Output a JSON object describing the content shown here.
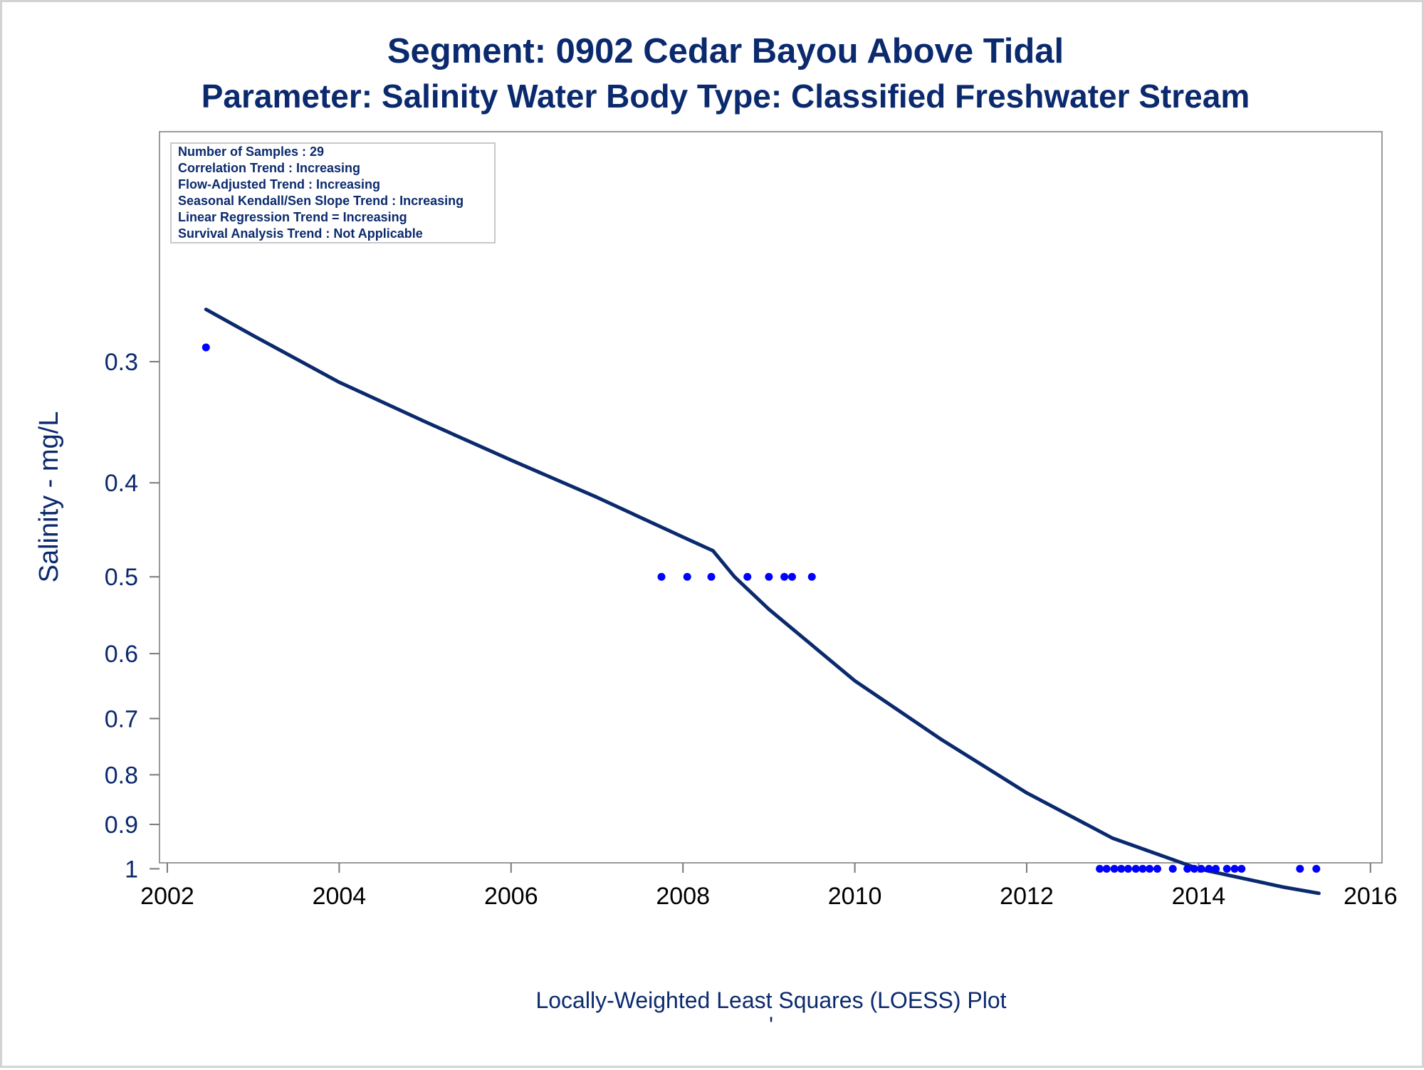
{
  "chart_data": {
    "type": "scatter",
    "title": "Segment: 0902  Cedar Bayou Above Tidal",
    "subtitle": "Parameter: Salinity   Water Body Type: Classified Freshwater Stream",
    "xlabel": "Locally-Weighted Least Squares (LOESS) Plot",
    "ylabel": "Salinity - mg/L",
    "footnote_mark": "'",
    "y_scale": "log",
    "xlim": [
      2002,
      2016
    ],
    "ylim": [
      0.26,
      1.07
    ],
    "x_ticks": [
      2002,
      2004,
      2006,
      2008,
      2010,
      2012,
      2014,
      2016
    ],
    "y_ticks": [
      0.3,
      0.4,
      0.5,
      0.6,
      0.7,
      0.8,
      0.9,
      1
    ],
    "x_tick_labels": [
      "2002",
      "2004",
      "2006",
      "2008",
      "2010",
      "2012",
      "2014",
      "2016"
    ],
    "y_tick_labels": [
      "0.3",
      "0.4",
      "0.5",
      "0.6",
      "0.7",
      "0.8",
      "0.9",
      "1"
    ],
    "grid": false,
    "legend": "none",
    "stats_box": {
      "placement": "top-left",
      "lines": [
        "Number of Samples : 29",
        "Correlation Trend : Increasing",
        "Flow-Adjusted Trend : Increasing",
        "Seasonal Kendall/Sen Slope Trend : Increasing",
        "Linear Regression Trend = Increasing",
        "Survival Analysis Trend : Not Applicable"
      ]
    },
    "series": [
      {
        "type": "scatter",
        "color": "#0000ff",
        "points": [
          {
            "x": 2002.45,
            "y": 0.29
          },
          {
            "x": 2007.75,
            "y": 0.5
          },
          {
            "x": 2008.05,
            "y": 0.5
          },
          {
            "x": 2008.33,
            "y": 0.5
          },
          {
            "x": 2008.75,
            "y": 0.5
          },
          {
            "x": 2009.0,
            "y": 0.5
          },
          {
            "x": 2009.18,
            "y": 0.5
          },
          {
            "x": 2009.27,
            "y": 0.5
          },
          {
            "x": 2009.5,
            "y": 0.5
          },
          {
            "x": 2012.85,
            "y": 1
          },
          {
            "x": 2012.93,
            "y": 1
          },
          {
            "x": 2013.02,
            "y": 1
          },
          {
            "x": 2013.1,
            "y": 1
          },
          {
            "x": 2013.18,
            "y": 1
          },
          {
            "x": 2013.27,
            "y": 1
          },
          {
            "x": 2013.35,
            "y": 1
          },
          {
            "x": 2013.43,
            "y": 1
          },
          {
            "x": 2013.52,
            "y": 1
          },
          {
            "x": 2013.7,
            "y": 1
          },
          {
            "x": 2013.87,
            "y": 1
          },
          {
            "x": 2013.95,
            "y": 1
          },
          {
            "x": 2014.03,
            "y": 1
          },
          {
            "x": 2014.12,
            "y": 1
          },
          {
            "x": 2014.2,
            "y": 1
          },
          {
            "x": 2014.33,
            "y": 1
          },
          {
            "x": 2014.42,
            "y": 1
          },
          {
            "x": 2014.5,
            "y": 1
          },
          {
            "x": 2015.18,
            "y": 1
          },
          {
            "x": 2015.37,
            "y": 1
          }
        ]
      },
      {
        "type": "line",
        "color": "#0b2a6e",
        "points": [
          {
            "x": 2002.45,
            "y": 0.265
          },
          {
            "x": 2003.0,
            "y": 0.282
          },
          {
            "x": 2004.0,
            "y": 0.315
          },
          {
            "x": 2005.0,
            "y": 0.346
          },
          {
            "x": 2006.0,
            "y": 0.379
          },
          {
            "x": 2007.0,
            "y": 0.414
          },
          {
            "x": 2008.0,
            "y": 0.455
          },
          {
            "x": 2008.35,
            "y": 0.47
          },
          {
            "x": 2008.6,
            "y": 0.5
          },
          {
            "x": 2009.0,
            "y": 0.54
          },
          {
            "x": 2010.0,
            "y": 0.64
          },
          {
            "x": 2011.0,
            "y": 0.735
          },
          {
            "x": 2012.0,
            "y": 0.835
          },
          {
            "x": 2013.0,
            "y": 0.93
          },
          {
            "x": 2014.0,
            "y": 1.0
          },
          {
            "x": 2015.0,
            "y": 1.045
          },
          {
            "x": 2015.4,
            "y": 1.06
          }
        ]
      }
    ]
  }
}
